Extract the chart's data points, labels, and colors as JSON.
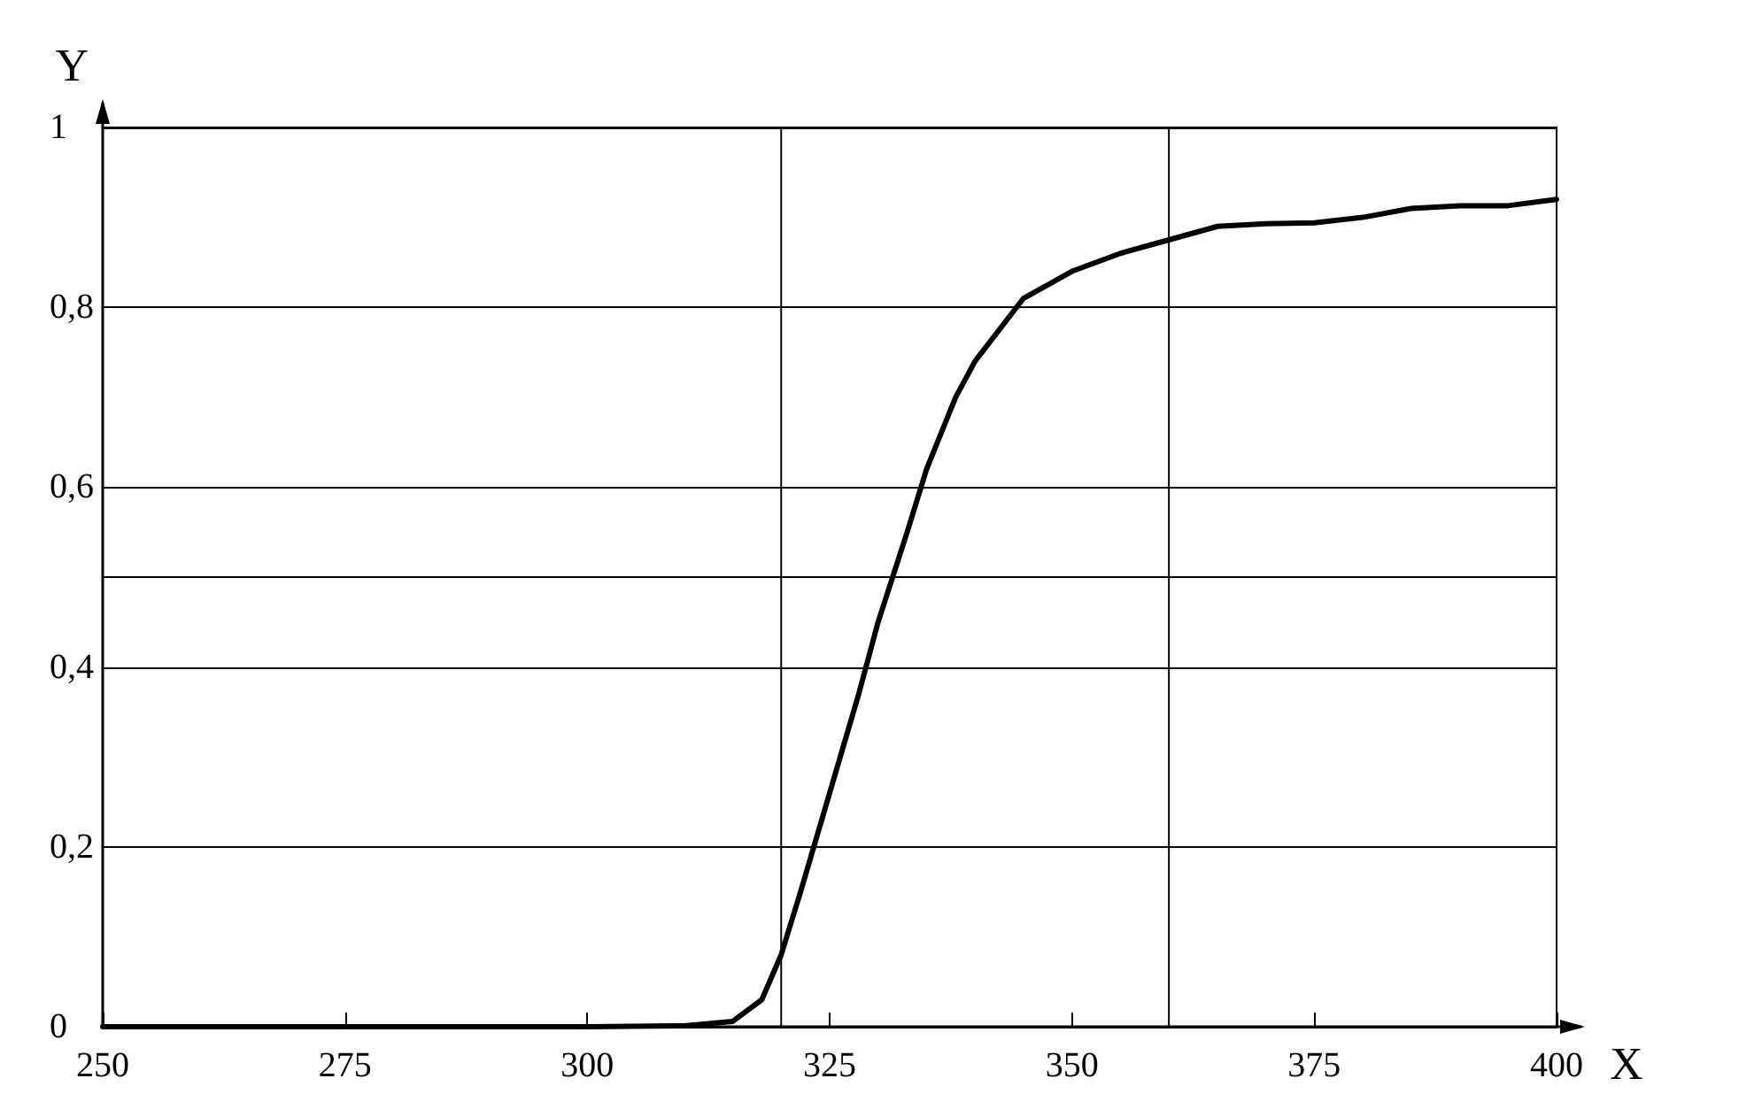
{
  "chart_data": {
    "type": "line",
    "xlabel": "X",
    "ylabel": "Y",
    "x": [
      250,
      300,
      310,
      315,
      318,
      320,
      322,
      325,
      328,
      330,
      333,
      335,
      338,
      340,
      345,
      350,
      355,
      360,
      365,
      370,
      375,
      380,
      385,
      390,
      395,
      400
    ],
    "series": [
      {
        "color": "#000000",
        "values": [
          0,
          0,
          0.001,
          0.006,
          0.03,
          0.08,
          0.15,
          0.26,
          0.37,
          0.45,
          0.55,
          0.62,
          0.7,
          0.74,
          0.81,
          0.84,
          0.86,
          0.875,
          0.89,
          0.893,
          0.894,
          0.9,
          0.91,
          0.913,
          0.913,
          0.92
        ]
      }
    ],
    "xlim": [
      250,
      400
    ],
    "xticks": [
      250,
      275,
      300,
      325,
      350,
      375,
      400
    ],
    "ylim": [
      0,
      1
    ],
    "yticks": [
      0,
      {
        "value": 0.2,
        "label": "0,2"
      },
      {
        "value": 0.4,
        "label": "0,4"
      },
      {
        "value": 0.6,
        "label": "0,6"
      },
      {
        "value": 0.8,
        "label": "0,8"
      },
      1
    ],
    "grid": "y",
    "marker": "none",
    "line_style": "solid",
    "ref_lines": [
      {
        "axis": "x",
        "value": 320
      },
      {
        "axis": "x",
        "value": 360
      },
      {
        "axis": "y",
        "value": 0.5
      }
    ]
  }
}
